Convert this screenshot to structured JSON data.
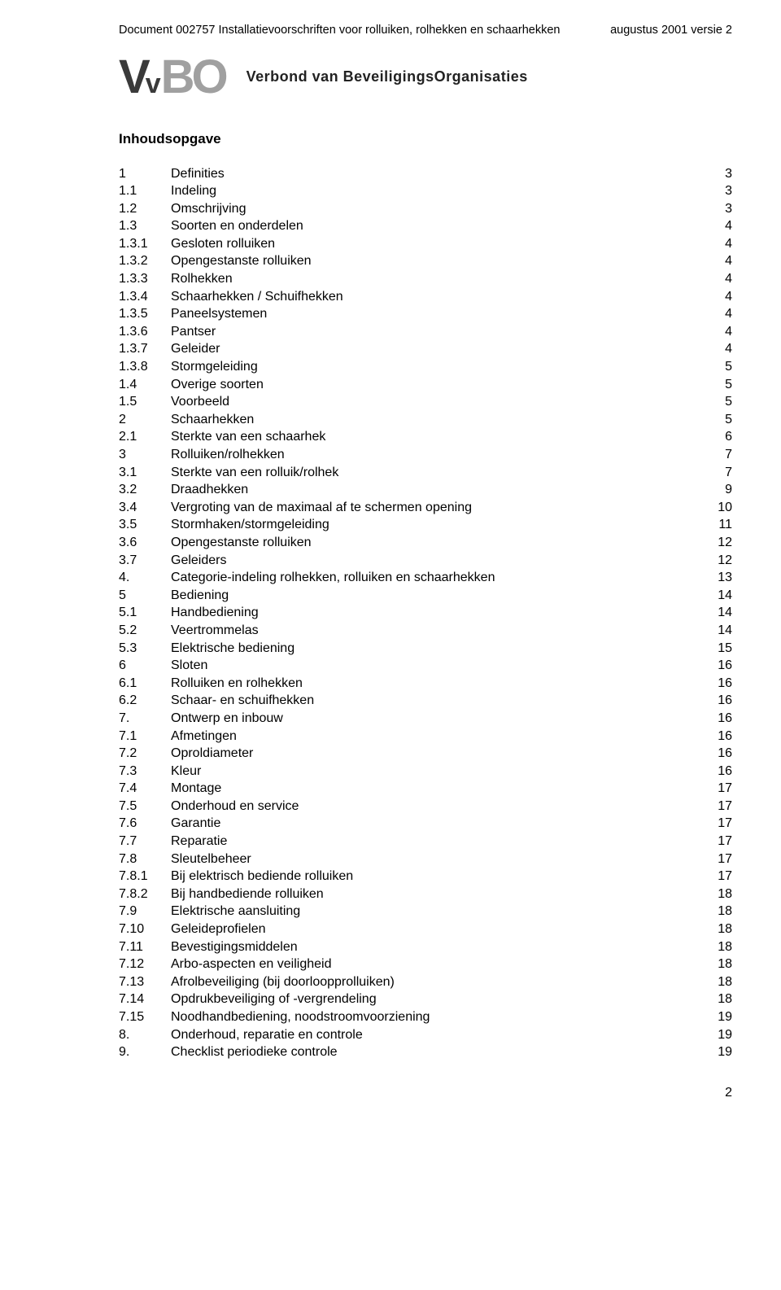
{
  "header": {
    "left": "Document 002757 Installatievoorschriften voor rolluiken, rolhekken en schaarhekken",
    "right": "augustus 2001 versie 2"
  },
  "logo": {
    "subtext": "Verbond van BeveiligingsOrganisaties"
  },
  "toc_title": "Inhoudsopgave",
  "toc": [
    {
      "num": "1",
      "label": "Definities",
      "page": "3"
    },
    {
      "num": "1.1",
      "label": "Indeling",
      "page": "3"
    },
    {
      "num": "1.2",
      "label": "Omschrijving",
      "page": "3"
    },
    {
      "num": "1.3",
      "label": "Soorten en onderdelen",
      "page": "4"
    },
    {
      "num": "1.3.1",
      "label": "Gesloten rolluiken",
      "page": "4"
    },
    {
      "num": "1.3.2",
      "label": "Opengestanste rolluiken",
      "page": "4"
    },
    {
      "num": "1.3.3",
      "label": "Rolhekken",
      "page": "4"
    },
    {
      "num": "1.3.4",
      "label": "Schaarhekken / Schuifhekken",
      "page": "4"
    },
    {
      "num": "1.3.5",
      "label": "Paneelsystemen",
      "page": "4"
    },
    {
      "num": "1.3.6",
      "label": "Pantser",
      "page": "4"
    },
    {
      "num": "1.3.7",
      "label": "Geleider",
      "page": "4"
    },
    {
      "num": "1.3.8",
      "label": "Stormgeleiding",
      "page": "5"
    },
    {
      "num": "1.4",
      "label": "Overige soorten",
      "page": "5"
    },
    {
      "num": "1.5",
      "label": "Voorbeeld",
      "page": "5"
    },
    {
      "num": "2",
      "label": "Schaarhekken",
      "page": "5"
    },
    {
      "num": "2.1",
      "label": "Sterkte van een schaarhek",
      "page": "6"
    },
    {
      "num": "3",
      "label": "Rolluiken/rolhekken",
      "page": "7"
    },
    {
      "num": "3.1",
      "label": "Sterkte van een rolluik/rolhek",
      "page": "7"
    },
    {
      "num": "3.2",
      "label": "Draadhekken",
      "page": "9"
    },
    {
      "num": "3.4",
      "label": "Vergroting van de maximaal af te schermen opening",
      "page": "10"
    },
    {
      "num": "3.5",
      "label": "Stormhaken/stormgeleiding",
      "page": "11"
    },
    {
      "num": "3.6",
      "label": "Opengestanste rolluiken",
      "page": "12"
    },
    {
      "num": "3.7",
      "label": "Geleiders",
      "page": "12"
    },
    {
      "num": "4.",
      "label": "Categorie-indeling rolhekken, rolluiken en schaarhekken",
      "page": "13"
    },
    {
      "num": "5",
      "label": "Bediening",
      "page": "14"
    },
    {
      "num": "5.1",
      "label": "Handbediening",
      "page": "14"
    },
    {
      "num": "5.2",
      "label": "Veertrommelas",
      "page": "14"
    },
    {
      "num": "5.3",
      "label": "Elektrische bediening",
      "page": "15"
    },
    {
      "num": "6",
      "label": "Sloten",
      "page": "16"
    },
    {
      "num": "6.1",
      "label": "Rolluiken en rolhekken",
      "page": "16"
    },
    {
      "num": "6.2",
      "label": "Schaar- en schuifhekken",
      "page": "16"
    },
    {
      "num": "7.",
      "label": "Ontwerp en inbouw",
      "page": "16"
    },
    {
      "num": "7.1",
      "label": "Afmetingen",
      "page": "16"
    },
    {
      "num": "7.2",
      "label": "Oproldiameter",
      "page": "16"
    },
    {
      "num": "7.3",
      "label": "Kleur",
      "page": "16"
    },
    {
      "num": "7.4",
      "label": "Montage",
      "page": "17"
    },
    {
      "num": "7.5",
      "label": "Onderhoud en service",
      "page": "17"
    },
    {
      "num": "7.6",
      "label": "Garantie",
      "page": "17"
    },
    {
      "num": "7.7",
      "label": "Reparatie",
      "page": "17"
    },
    {
      "num": "7.8",
      "label": "Sleutelbeheer",
      "page": "17"
    },
    {
      "num": "7.8.1",
      "label": "Bij elektrisch bediende rolluiken",
      "page": "17"
    },
    {
      "num": "7.8.2",
      "label": "Bij handbediende rolluiken",
      "page": "18"
    },
    {
      "num": "7.9",
      "label": "Elektrische aansluiting",
      "page": "18"
    },
    {
      "num": "7.10",
      "label": "Geleideprofielen",
      "page": "18"
    },
    {
      "num": "7.11",
      "label": "Bevestigingsmiddelen",
      "page": "18"
    },
    {
      "num": "7.12",
      "label": "Arbo-aspecten en veiligheid",
      "page": "18"
    },
    {
      "num": "7.13",
      "label": "Afrolbeveiliging (bij doorloopprolluiken)",
      "page": "18"
    },
    {
      "num": "7.14",
      "label": "Opdrukbeveiliging of -vergrendeling",
      "page": "18"
    },
    {
      "num": "7.15",
      "label": "Noodhandbediening, noodstroomvoorziening",
      "page": "19"
    },
    {
      "num": "8.",
      "label": "Onderhoud, reparatie en controle",
      "page": "19"
    },
    {
      "num": "9.",
      "label": "Checklist periodieke controle",
      "page": "19"
    }
  ],
  "footer_page": "2"
}
